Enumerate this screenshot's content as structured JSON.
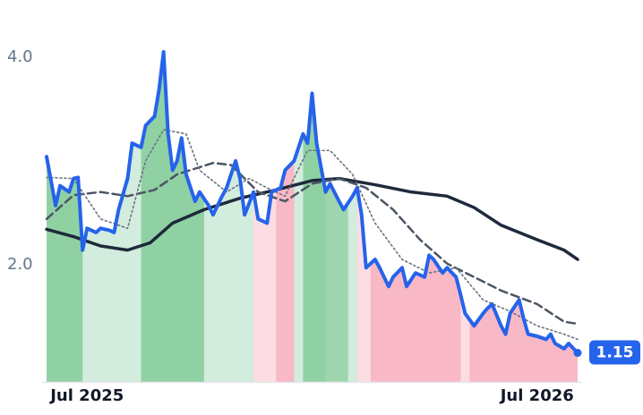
{
  "chart_data": {
    "type": "line",
    "xlim": [
      2025.4,
      2026.6
    ],
    "xticks": [
      {
        "value": 2025.5,
        "label": "Jul 2025"
      },
      {
        "value": 2026.5,
        "label": "Jul 2026"
      }
    ],
    "ylim": [
      0.87,
      4.55
    ],
    "yticks": [
      {
        "value": 2,
        "label": "2.0"
      },
      {
        "value": 4,
        "label": "4.0"
      }
    ],
    "grid": false,
    "x": [
      2025.41,
      2025.43,
      2025.44,
      2025.46,
      2025.47,
      2025.48,
      2025.49,
      2025.5,
      2025.52,
      2025.53,
      2025.55,
      2025.56,
      2025.57,
      2025.59,
      2025.6,
      2025.62,
      2025.63,
      2025.65,
      2025.66,
      2025.67,
      2025.68,
      2025.69,
      2025.7,
      2025.71,
      2025.72,
      2025.74,
      2025.75,
      2025.77,
      2025.78,
      2025.8,
      2025.81,
      2025.83,
      2025.84,
      2025.85,
      2025.87,
      2025.88,
      2025.9,
      2025.91,
      2025.93,
      2025.94,
      2025.96,
      2025.97,
      2025.98,
      2025.99,
      2026.0,
      2026.01,
      2026.03,
      2026.04,
      2026.06,
      2026.07,
      2026.09,
      2026.1,
      2026.11,
      2026.12,
      2026.14,
      2026.15,
      2026.17,
      2026.18,
      2026.2,
      2026.21,
      2026.23,
      2026.25,
      2026.26,
      2026.27,
      2026.29,
      2026.3,
      2026.32,
      2026.33,
      2026.34,
      2026.36,
      2026.38,
      2026.39,
      2026.4,
      2026.42,
      2026.43,
      2026.44,
      2026.46,
      2026.47,
      2026.48,
      2026.5,
      2026.52,
      2026.53,
      2026.54,
      2026.56,
      2026.57,
      2026.59
    ],
    "series": [
      {
        "color": "#2563eb",
        "style": "solid",
        "width": 4,
        "main": true,
        "values": [
          3.04,
          2.57,
          2.76,
          2.7,
          2.83,
          2.84,
          2.14,
          2.35,
          2.31,
          2.35,
          2.33,
          2.31,
          2.53,
          2.83,
          3.17,
          3.13,
          3.34,
          3.43,
          3.69,
          4.05,
          3.26,
          2.91,
          3.0,
          3.22,
          2.87,
          2.61,
          2.7,
          2.57,
          2.48,
          2.66,
          2.74,
          3.0,
          2.83,
          2.48,
          2.7,
          2.44,
          2.4,
          2.7,
          2.74,
          2.91,
          3.0,
          3.13,
          3.26,
          3.17,
          3.65,
          3.17,
          2.7,
          2.78,
          2.61,
          2.53,
          2.66,
          2.74,
          2.48,
          1.97,
          2.05,
          1.97,
          1.79,
          1.88,
          1.97,
          1.79,
          1.92,
          1.88,
          2.09,
          2.05,
          1.92,
          1.97,
          1.88,
          1.71,
          1.53,
          1.41,
          1.53,
          1.58,
          1.62,
          1.41,
          1.33,
          1.53,
          1.66,
          1.48,
          1.33,
          1.31,
          1.28,
          1.33,
          1.24,
          1.19,
          1.24,
          1.15
        ]
      },
      {
        "color": "#1e293b",
        "style": "solid",
        "width": 3.5,
        "x": [
          2025.41,
          2025.47,
          2025.53,
          2025.59,
          2025.64,
          2025.69,
          2025.76,
          2025.84,
          2025.92,
          2026.0,
          2026.06,
          2026.14,
          2026.22,
          2026.3,
          2026.36,
          2026.42,
          2026.5,
          2026.56,
          2026.59
        ],
        "values": [
          2.34,
          2.27,
          2.18,
          2.14,
          2.21,
          2.4,
          2.53,
          2.64,
          2.72,
          2.81,
          2.83,
          2.77,
          2.7,
          2.66,
          2.55,
          2.38,
          2.24,
          2.14,
          2.05
        ]
      },
      {
        "color": "#4b5563",
        "style": "dashed",
        "width": 2.5,
        "x": [
          2025.41,
          2025.47,
          2025.53,
          2025.59,
          2025.65,
          2025.7,
          2025.78,
          2025.82,
          2025.88,
          2025.94,
          2026.0,
          2026.06,
          2026.12,
          2026.18,
          2026.24,
          2026.3,
          2026.36,
          2026.42,
          2026.5,
          2026.56,
          2026.59
        ],
        "values": [
          2.44,
          2.67,
          2.7,
          2.66,
          2.72,
          2.87,
          2.98,
          2.96,
          2.7,
          2.61,
          2.78,
          2.83,
          2.74,
          2.53,
          2.24,
          2.01,
          1.88,
          1.75,
          1.62,
          1.45,
          1.43
        ]
      },
      {
        "color": "#6b7280",
        "style": "dotted",
        "width": 1.6,
        "x": [
          2025.41,
          2025.47,
          2025.53,
          2025.59,
          2025.63,
          2025.67,
          2025.72,
          2025.75,
          2025.81,
          2025.86,
          2025.9,
          2025.94,
          2025.99,
          2026.04,
          2026.09,
          2026.14,
          2026.2,
          2026.26,
          2026.32,
          2026.38,
          2026.44,
          2026.5,
          2026.56,
          2026.59
        ],
        "values": [
          2.84,
          2.83,
          2.44,
          2.35,
          3.0,
          3.3,
          3.26,
          2.91,
          2.7,
          2.83,
          2.74,
          2.66,
          3.1,
          3.1,
          2.87,
          2.4,
          2.05,
          1.92,
          1.97,
          1.66,
          1.55,
          1.41,
          1.33,
          1.28
        ]
      }
    ],
    "bands": [
      {
        "x0": 2025.41,
        "x1": 2025.49,
        "color": "#90d1a4"
      },
      {
        "x0": 2025.49,
        "x1": 2025.62,
        "color": "#d2ecdd"
      },
      {
        "x0": 2025.62,
        "x1": 2025.76,
        "color": "#90d1a4"
      },
      {
        "x0": 2025.76,
        "x1": 2025.87,
        "color": "#d2ecdd"
      },
      {
        "x0": 2025.87,
        "x1": 2025.92,
        "color": "#fcdde3"
      },
      {
        "x0": 2025.92,
        "x1": 2025.96,
        "color": "#f8b8c5"
      },
      {
        "x0": 2025.96,
        "x1": 2025.98,
        "color": "#d2ecdd"
      },
      {
        "x0": 2025.98,
        "x1": 2026.03,
        "color": "#90d1a4"
      },
      {
        "x0": 2026.03,
        "x1": 2026.08,
        "color": "#9dd6ae"
      },
      {
        "x0": 2026.08,
        "x1": 2026.1,
        "color": "#d2ecdd"
      },
      {
        "x0": 2026.1,
        "x1": 2026.13,
        "color": "#fcdde3"
      },
      {
        "x0": 2026.13,
        "x1": 2026.33,
        "color": "#f8b8c5"
      },
      {
        "x0": 2026.33,
        "x1": 2026.35,
        "color": "#fcdde3"
      },
      {
        "x0": 2026.35,
        "x1": 2026.59,
        "color": "#f8b8c5"
      }
    ],
    "end_label": "1.15"
  }
}
